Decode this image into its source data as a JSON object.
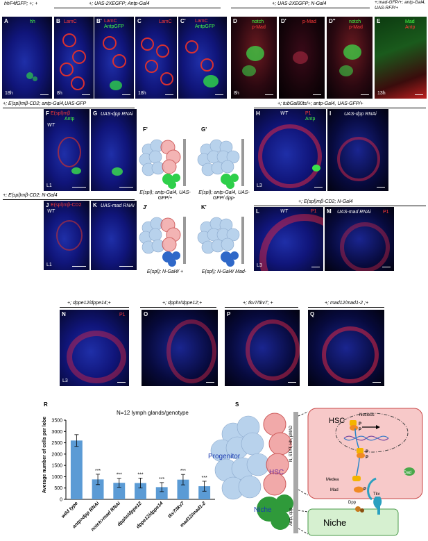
{
  "genotypes": {
    "a": "hhF4fGFP; +; +",
    "bc": "+; UAS-2XEGFP; Antp-Gal4",
    "d": "+; UAS-2XEGFP; N-Gal4",
    "e": "+;mad-GFP/+; antp-Gal4, UAS-RFP/+",
    "fg": "+; E(spl)mβ-CD2; antp-Gal4,UAS-GFP",
    "hi": "+; tubGal80ts/+; antp-Gal4, UAS-GFP/+",
    "jk": "+; E(spl)mβ-CD2; N-Gal4",
    "lm": "+; E(spl)mβ-CD2; N-Gal4",
    "n": "+; dppe12/dppe14;+",
    "o": "+; dpphr/dppe12;+",
    "p": "+; tkv7/tkv7; +",
    "q": "+; mad12/mad1-2 ;+"
  },
  "panels": {
    "A": {
      "letter": "A",
      "tags": [
        "hh"
      ],
      "time": "18h"
    },
    "B": {
      "letter": "B",
      "tags": [
        "LamC"
      ],
      "time": "8h"
    },
    "B2": {
      "letter": "B'",
      "tags": [
        "LamC",
        "AntpGFP"
      ]
    },
    "C": {
      "letter": "C",
      "tags": [
        "LamC"
      ],
      "time": "18h"
    },
    "C2": {
      "letter": "C'",
      "tags": [
        "LamC",
        "AntpGFP"
      ]
    },
    "D": {
      "letter": "D",
      "tags": [
        "notch",
        "p-Mad"
      ],
      "time": "8h"
    },
    "D2": {
      "letter": "D'",
      "tags": [
        "p-Mad"
      ]
    },
    "D3": {
      "letter": "D''",
      "tags": [
        "notch",
        "p-Mad"
      ]
    },
    "E": {
      "letter": "E",
      "tags": [
        "Mad",
        "Antp"
      ],
      "time": "13h"
    },
    "F": {
      "letter": "F",
      "tags": [
        "E(spl)mβ",
        "Antp",
        "WT"
      ],
      "time": "L1"
    },
    "G": {
      "letter": "G",
      "tags": [
        "UAS-dpp RNAi"
      ]
    },
    "H": {
      "letter": "H",
      "tags": [
        "WT",
        "P1",
        "Antp"
      ],
      "time": "L3"
    },
    "I": {
      "letter": "I",
      "tags": [
        "UAS-dpp RNAi"
      ]
    },
    "J": {
      "letter": "J",
      "tags": [
        "E(spl)mβ-CD2",
        "WT"
      ],
      "time": "L1"
    },
    "K": {
      "letter": "K",
      "tags": [
        "UAS-mad RNAi"
      ]
    },
    "L": {
      "letter": "L",
      "tags": [
        "WT",
        "P1"
      ],
      "time": "L3"
    },
    "M": {
      "letter": "M",
      "tags": [
        "UAS-mad RNAi",
        "P1"
      ]
    },
    "N": {
      "letter": "N",
      "tags": [
        "P1"
      ],
      "time": "L3"
    },
    "O": {
      "letter": "O"
    },
    "P": {
      "letter": "P"
    },
    "Q": {
      "letter": "Q"
    }
  },
  "schematics": {
    "F2": {
      "letter": "F'",
      "caption": "E(spl); antp-Gal4, UAS-GFP/+"
    },
    "G2": {
      "letter": "G'",
      "caption": "E(spl); antp-Gal4, UAS-GFP/ dpp-"
    },
    "J2": {
      "letter": "J'",
      "caption": "E(spl); N-Gal4/ +"
    },
    "K2": {
      "letter": "K'",
      "caption": "E(spl); N-Gal4/ Mad-"
    }
  },
  "panel_R": {
    "letter": "R",
    "note": "N=12 lymph glands/genotype",
    "significance": "***"
  },
  "chart_data": {
    "type": "bar",
    "title": "",
    "ylabel": "Average number of cells per lobe",
    "xlabel": "",
    "ylim": [
      0,
      3500
    ],
    "yticks": [
      0,
      500,
      1000,
      1500,
      2000,
      2500,
      3000,
      3500
    ],
    "categories": [
      "wild type",
      "antp>dpp RNAi",
      "notch>mad RNAi",
      "dpphr/dppe12",
      "dppe12/dppe14",
      "tkv7/tkv7",
      "mad12/mad1-2"
    ],
    "values": [
      2600,
      880,
      730,
      720,
      540,
      870,
      580
    ],
    "errors": [
      260,
      230,
      200,
      220,
      200,
      230,
      220
    ],
    "significant": [
      false,
      true,
      true,
      true,
      true,
      true,
      true
    ],
    "bar_color": "#5b9bd5"
  },
  "panel_S": {
    "letter": "S",
    "hsc_title": "HSC",
    "nucleus": "Nucleus",
    "progenitor": "Progenitor",
    "hsc": "HSC",
    "niche": "Niche",
    "niche_box": "Niche",
    "stack_top": "N, STAT, Hh, pMAD",
    "stack_bottom": "Antp, dpp",
    "medea": "Medea",
    "mad": "Mad",
    "tkv": "Tkv",
    "dpp": "Dpp",
    "dad": "Dad",
    "p": "P",
    "colors": {
      "hsc_box": "#f7c9c9",
      "niche_box": "#d6f0d0",
      "progenitor": "#b8d2ec",
      "hsc": "#e25a5a",
      "niche": "#2f9a3a"
    }
  }
}
